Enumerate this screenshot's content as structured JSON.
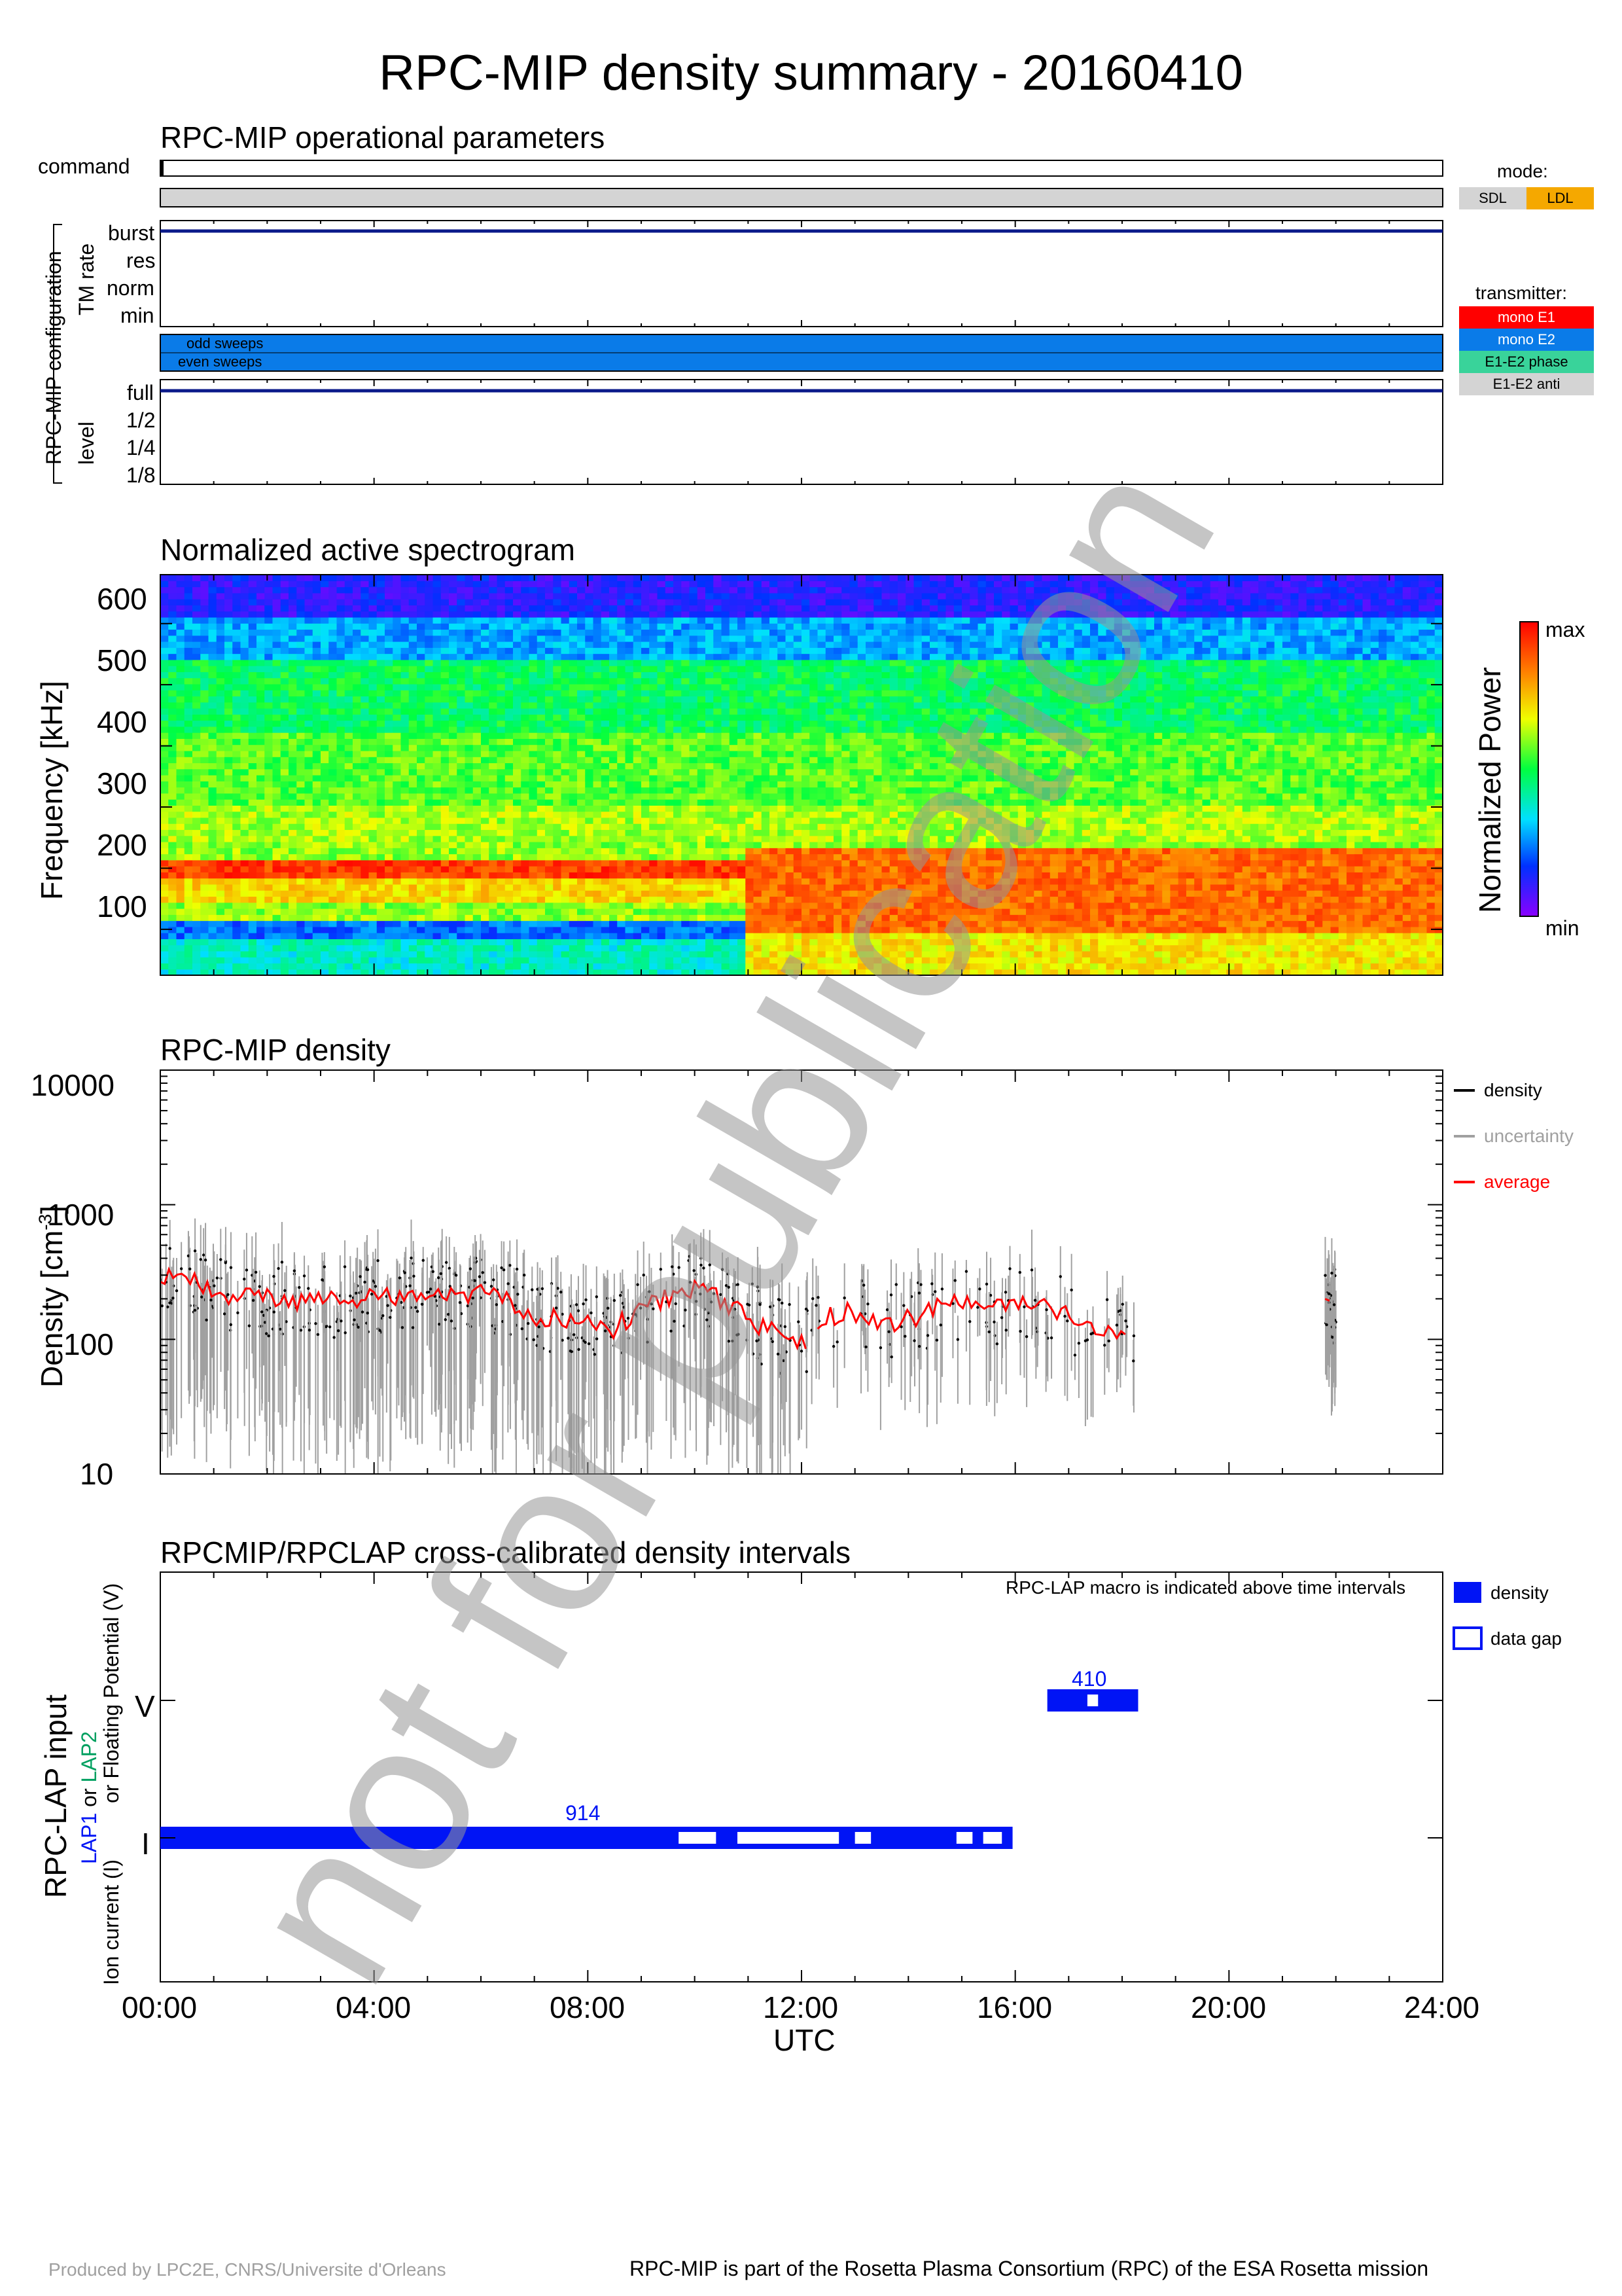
{
  "title": "RPC-MIP density summary - 20160410",
  "ops": {
    "title": "RPC-MIP operational parameters",
    "command_label": "command",
    "config_label": "RPC-MIP configuration",
    "tm_label": "TM rate",
    "tm_levels": [
      "burst",
      "res",
      "norm",
      "min"
    ],
    "tm_value": "burst",
    "sweep_labels": [
      "odd sweeps",
      "even sweeps"
    ],
    "level_label": "level",
    "level_ticks": [
      "full",
      "1/2",
      "1/4",
      "1/8"
    ],
    "level_value": "full",
    "mode_title": "mode:",
    "modes": [
      {
        "label": "SDL",
        "color": "#d4d4d4"
      },
      {
        "label": "LDL",
        "color": "#f5a800"
      }
    ],
    "transmitter_title": "transmitter:",
    "transmitters": [
      {
        "label": "mono E1",
        "color": "#ff0000"
      },
      {
        "label": "mono E2",
        "color": "#0a7be8"
      },
      {
        "label": "E1-E2 phase",
        "color": "#39d39a"
      },
      {
        "label": "E1-E2 anti",
        "color": "#d4d4d4"
      }
    ]
  },
  "spectro": {
    "title": "Normalized active spectrogram",
    "ylabel": "Frequency [kHz]",
    "yticks": [
      "100",
      "200",
      "300",
      "400",
      "500",
      "600"
    ],
    "colorbar_label": "Normalized Power",
    "cb_max": "max",
    "cb_min": "min"
  },
  "density": {
    "title": "RPC-MIP density",
    "ylabel": "Density [cm",
    "ylabel_sup": "-3",
    "ylabel_end": "]",
    "yticks": [
      "10",
      "100",
      "1000",
      "10000"
    ],
    "legend": [
      {
        "label": "density",
        "color": "#000000"
      },
      {
        "label": "uncertainty",
        "color": "#a0a0a0"
      },
      {
        "label": "average",
        "color": "#ff0000"
      }
    ]
  },
  "lap": {
    "title": "RPCMIP/RPCLAP cross-calibrated density intervals",
    "note": "RPC-LAP macro is indicated above time intervals",
    "ylabel_main": "RPC-LAP input",
    "ylabel_lap1": "LAP1",
    "ylabel_or": " or ",
    "ylabel_lap2": "LAP2",
    "ylabel_3": "or Floating Potential (V)",
    "ylabel_4": "Ion current (I)",
    "level_V": "V",
    "level_I": "I",
    "macro_V": "410",
    "macro_I": "914",
    "legend_density": "density",
    "legend_gap": "data gap"
  },
  "xaxis": {
    "ticks": [
      "00:00",
      "04:00",
      "08:00",
      "12:00",
      "16:00",
      "20:00",
      "24:00"
    ],
    "label": "UTC"
  },
  "footer_left": "Produced by LPC2E, CNRS/Universite d'Orleans",
  "footer_right": "RPC-MIP is part of the Rosetta Plasma Consortium (RPC) of the ESA Rosetta mission",
  "watermark": "not for publication",
  "chart_data": [
    {
      "type": "heatmap",
      "title": "Normalized active spectrogram",
      "xlabel": "UTC",
      "ylabel": "Frequency [kHz]",
      "xlim_hours": [
        0,
        24
      ],
      "ylim": [
        25,
        680
      ],
      "colorscale": "rainbow min-max",
      "bands_kHz": {
        "hot_before_11h": [
          190,
          210
        ],
        "hot_after_11h": [
          90,
          230
        ]
      }
    },
    {
      "type": "scatter",
      "title": "RPC-MIP density",
      "xlabel": "UTC",
      "ylabel": "Density [cm-3]",
      "yscale": "log",
      "ylim": [
        10,
        10000
      ],
      "series": [
        {
          "name": "average",
          "x": [
            0.0,
            0.5,
            1.0,
            2.0,
            3.0,
            4.0,
            5.0,
            6.0,
            6.5,
            7.0,
            8.0,
            8.5,
            9.0,
            9.5,
            10.0,
            10.5,
            11.0,
            11.5,
            12.0,
            12.5,
            13.0,
            13.5,
            14.0,
            14.5,
            15.0,
            15.5,
            16.0,
            16.5,
            17.0,
            17.5,
            18.0,
            21.9
          ],
          "y": [
            300,
            280,
            220,
            200,
            190,
            200,
            230,
            220,
            200,
            150,
            140,
            120,
            170,
            200,
            250,
            200,
            140,
            110,
            90,
            150,
            160,
            130,
            140,
            170,
            190,
            170,
            180,
            170,
            150,
            130,
            110,
            180
          ]
        }
      ]
    },
    {
      "type": "bar",
      "title": "RPCMIP/RPCLAP cross-calibrated density intervals",
      "rows": [
        {
          "level": "V",
          "macro": "410",
          "start_h": 16.6,
          "end_h": 18.3,
          "gaps_h": [
            [
              17.35,
              17.55
            ]
          ]
        },
        {
          "level": "I",
          "macro": "914",
          "start_h": 0.0,
          "end_h": 15.95,
          "gaps_h": [
            [
              9.7,
              10.4
            ],
            [
              10.8,
              12.7
            ],
            [
              13.0,
              13.3
            ],
            [
              14.9,
              15.2
            ],
            [
              15.4,
              15.75
            ]
          ]
        }
      ]
    }
  ]
}
